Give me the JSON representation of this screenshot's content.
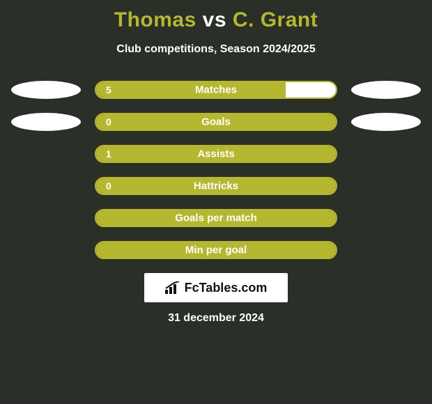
{
  "background_color": "#2a2f28",
  "title": {
    "player1": "Thomas",
    "vs": "vs",
    "player2": "C. Grant",
    "p1_color": "#b5b730",
    "vs_color": "#ffffff",
    "p2_color": "#b5b730"
  },
  "subtitle": {
    "text": "Club competitions, Season 2024/2025",
    "color": "#ffffff"
  },
  "chart": {
    "track_border_color": "#b5b730",
    "left_color": "#b5b730",
    "right_color": "#ffffff",
    "label_color": "#ffffff",
    "value_color": "#ffffff",
    "rows": [
      {
        "label": "Matches",
        "left_val": "5",
        "right_val": "1",
        "left_pct": 79,
        "right_pct": 21,
        "show_left_avatar": true,
        "show_right_avatar": true
      },
      {
        "label": "Goals",
        "left_val": "0",
        "right_val": "",
        "left_pct": 100,
        "right_pct": 0,
        "show_left_avatar": true,
        "show_right_avatar": true
      },
      {
        "label": "Assists",
        "left_val": "1",
        "right_val": "",
        "left_pct": 100,
        "right_pct": 0,
        "show_left_avatar": false,
        "show_right_avatar": false
      },
      {
        "label": "Hattricks",
        "left_val": "0",
        "right_val": "",
        "left_pct": 100,
        "right_pct": 0,
        "show_left_avatar": false,
        "show_right_avatar": false
      },
      {
        "label": "Goals per match",
        "left_val": "",
        "right_val": "",
        "left_pct": 100,
        "right_pct": 0,
        "show_left_avatar": false,
        "show_right_avatar": false
      },
      {
        "label": "Min per goal",
        "left_val": "",
        "right_val": "",
        "left_pct": 100,
        "right_pct": 0,
        "show_left_avatar": false,
        "show_right_avatar": false
      }
    ],
    "avatar_bg": "#ffffff"
  },
  "branding": {
    "text": "FcTables.com",
    "icon_color": "#111111",
    "bg": "#ffffff"
  },
  "date": {
    "text": "31 december 2024",
    "color": "#ffffff"
  }
}
